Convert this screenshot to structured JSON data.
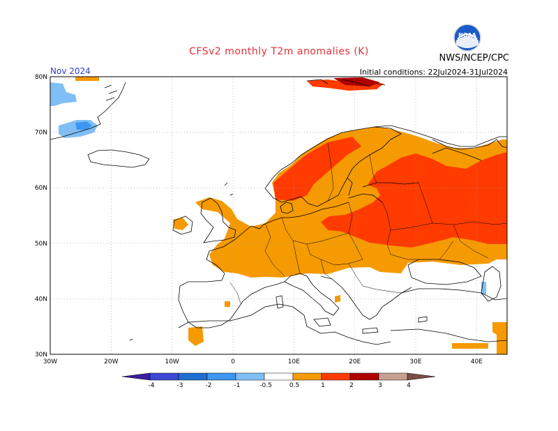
{
  "header": {
    "title": "CFSv2 monthly T2m anomalies (K)",
    "organization": "NWS/NCEP/CPC",
    "logo_text": "NOAA",
    "month": "Nov 2024",
    "initial_conditions": "Initial conditions: 22Jul2024-31Jul2024"
  },
  "map": {
    "lon_range": [
      -30,
      45
    ],
    "lat_range": [
      30,
      80
    ],
    "lon_labels": [
      "30W",
      "20W",
      "10W",
      "0",
      "10E",
      "20E",
      "30E",
      "40E"
    ],
    "lat_labels": [
      "30N",
      "40N",
      "50N",
      "60N",
      "70N",
      "80N"
    ]
  },
  "colorbar": {
    "labels": [
      "-4",
      "-3",
      "-2",
      "-1",
      "-0.5",
      "0.5",
      "1",
      "2",
      "3",
      "4"
    ],
    "colors": [
      "#3a1e9e",
      "#3b48d4",
      "#1e6fd1",
      "#3d96f0",
      "#80bff5",
      "#ffffff",
      "#f59a00",
      "#ff3b00",
      "#b00000",
      "#c8a090",
      "#7a4f45"
    ]
  }
}
